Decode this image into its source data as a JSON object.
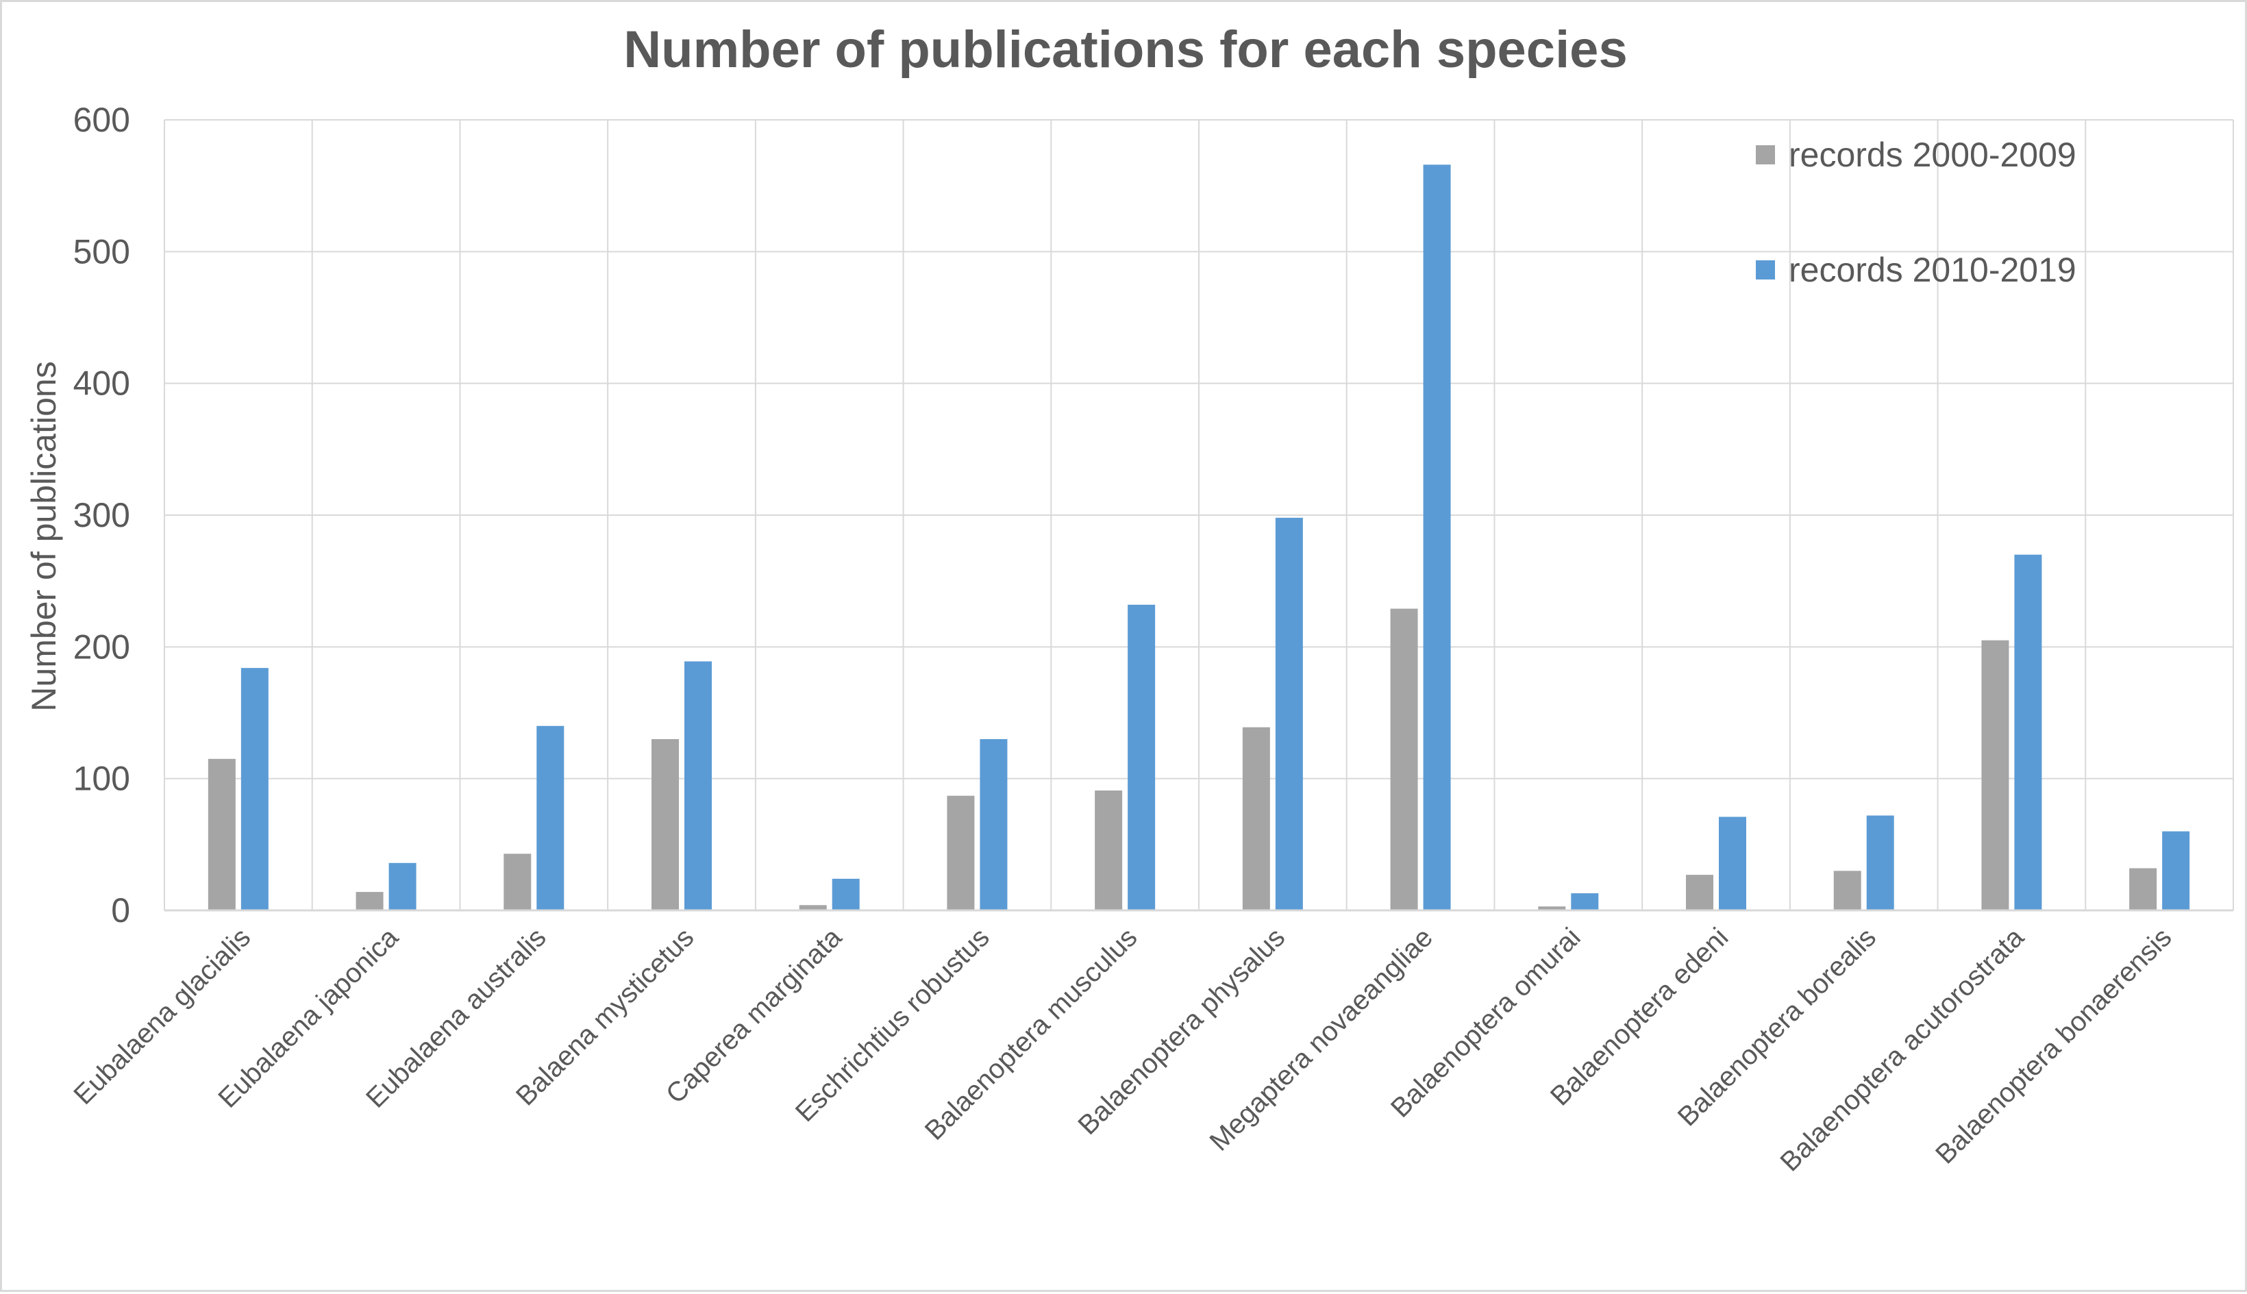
{
  "chart_data": {
    "type": "bar",
    "title": "Number of publications for each species",
    "ylabel": "Number of publications",
    "xlabel": "",
    "ylim": [
      0,
      600
    ],
    "yticks": [
      0,
      100,
      200,
      300,
      400,
      500,
      600
    ],
    "grid": true,
    "legend_position": "top-right",
    "categories": [
      "Eubalaena glacialis",
      "Eubalaena japonica",
      "Eubalaena australis",
      "Balaena mysticetus",
      "Caperea marginata",
      "Eschrichtius robustus",
      "Balaenoptera musculus",
      "Balaenoptera physalus",
      "Megaptera novaeangliae",
      "Balaenoptera omurai",
      "Balaenoptera edeni",
      "Balaenoptera borealis",
      "Balaenoptera acutorostrata",
      "Balaenoptera bonaerensis"
    ],
    "series": [
      {
        "name": "records 2000-2009",
        "color": "#a5a5a5",
        "values": [
          115,
          14,
          43,
          130,
          4,
          87,
          91,
          139,
          229,
          3,
          27,
          30,
          205,
          32
        ]
      },
      {
        "name": "records 2010-2019",
        "color": "#5b9bd5",
        "values": [
          184,
          36,
          140,
          189,
          24,
          130,
          232,
          298,
          566,
          13,
          71,
          72,
          270,
          60
        ]
      }
    ]
  }
}
